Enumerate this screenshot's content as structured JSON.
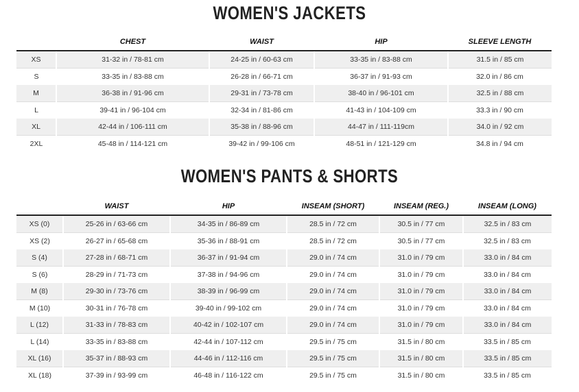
{
  "jackets": {
    "title": "WOMEN'S JACKETS",
    "headers": [
      "",
      "CHEST",
      "WAIST",
      "HIP",
      "SLEEVE LENGTH"
    ],
    "rows": [
      [
        "XS",
        "31-32 in / 78-81 cm",
        "24-25 in / 60-63 cm",
        "33-35 in / 83-88 cm",
        "31.5 in / 85 cm"
      ],
      [
        "S",
        "33-35 in / 83-88 cm",
        "26-28 in / 66-71 cm",
        "36-37 in / 91-93 cm",
        "32.0 in / 86 cm"
      ],
      [
        "M",
        "36-38 in / 91-96 cm",
        "29-31 in / 73-78 cm",
        "38-40 in / 96-101 cm",
        "32.5 in / 88 cm"
      ],
      [
        "L",
        "39-41 in / 96-104 cm",
        "32-34 in / 81-86 cm",
        "41-43 in / 104-109 cm",
        "33.3 in / 90 cm"
      ],
      [
        "XL",
        "42-44 in / 106-111 cm",
        "35-38 in / 88-96 cm",
        "44-47 in / 111-119cm",
        "34.0 in / 92 cm"
      ],
      [
        "2XL",
        "45-48 in / 114-121 cm",
        "39-42 in / 99-106 cm",
        "48-51 in / 121-129 cm",
        "34.8 in / 94 cm"
      ]
    ]
  },
  "pants": {
    "title": "WOMEN'S PANTS & SHORTS",
    "headers": [
      "",
      "WAIST",
      "HIP",
      "INSEAM (SHORT)",
      "INSEAM (REG.)",
      "INSEAM (LONG)"
    ],
    "rows": [
      [
        "XS (0)",
        "25-26 in / 63-66 cm",
        "34-35 in / 86-89 cm",
        "28.5 in / 72 cm",
        "30.5 in / 77 cm",
        "32.5 in / 83 cm"
      ],
      [
        "XS (2)",
        "26-27 in / 65-68 cm",
        "35-36 in / 88-91 cm",
        "28.5 in / 72 cm",
        "30.5 in / 77 cm",
        "32.5 in / 83 cm"
      ],
      [
        "S (4)",
        "27-28 in / 68-71 cm",
        "36-37 in / 91-94 cm",
        "29.0 in / 74 cm",
        "31.0 in / 79 cm",
        "33.0 in / 84 cm"
      ],
      [
        "S (6)",
        "28-29 in / 71-73 cm",
        "37-38 in / 94-96 cm",
        "29.0 in / 74 cm",
        "31.0 in / 79 cm",
        "33.0 in / 84 cm"
      ],
      [
        "M (8)",
        "29-30 in / 73-76 cm",
        "38-39 in / 96-99 cm",
        "29.0 in / 74 cm",
        "31.0 in / 79 cm",
        "33.0 in / 84 cm"
      ],
      [
        "M (10)",
        "30-31 in / 76-78 cm",
        "39-40 in / 99-102 cm",
        "29.0 in / 74 cm",
        "31.0 in / 79 cm",
        "33.0 in / 84 cm"
      ],
      [
        "L (12)",
        "31-33 in / 78-83 cm",
        "40-42 in / 102-107 cm",
        "29.0 in / 74 cm",
        "31.0 in / 79 cm",
        "33.0 in / 84 cm"
      ],
      [
        "L (14)",
        "33-35 in / 83-88 cm",
        "42-44 in / 107-112 cm",
        "29.5 in / 75 cm",
        "31.5 in / 80 cm",
        "33.5 in / 85 cm"
      ],
      [
        "XL (16)",
        "35-37 in / 88-93 cm",
        "44-46 in / 112-116 cm",
        "29.5 in / 75 cm",
        "31.5 in / 80 cm",
        "33.5 in / 85 cm"
      ],
      [
        "XL (18)",
        "37-39 in / 93-99 cm",
        "46-48 in / 116-122 cm",
        "29.5 in / 75 cm",
        "31.5 in / 80 cm",
        "33.5 in / 85 cm"
      ]
    ]
  }
}
